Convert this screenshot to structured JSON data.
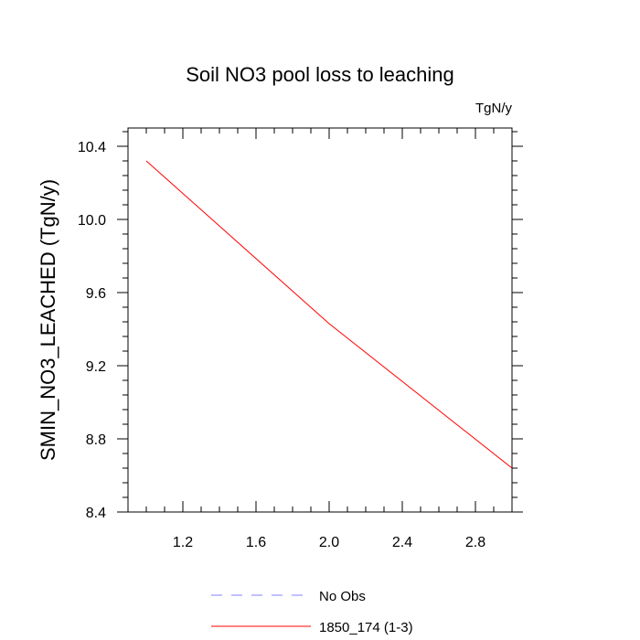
{
  "chart_data": {
    "type": "line",
    "title": "Soil NO3 pool loss to leaching",
    "units": "TgN/y",
    "ylabel": "SMIN_NO3_LEACHED  (TgN/y)",
    "xlabel": "",
    "xlim": [
      0.9,
      3.0
    ],
    "ylim": [
      8.4,
      10.5
    ],
    "x_ticks": [
      "1.2",
      "1.6",
      "2.0",
      "2.4",
      "2.8"
    ],
    "y_ticks": [
      "8.4",
      "8.8",
      "9.2",
      "9.6",
      "10.0",
      "10.4"
    ],
    "grid": false,
    "legend_position": "bottom",
    "series": [
      {
        "name": "No Obs",
        "color": "#8080ff",
        "style": "dashed",
        "x": [],
        "y": []
      },
      {
        "name": "1850_174 (1-3)",
        "color": "#ff0000",
        "style": "solid",
        "x": [
          1.0,
          2.0,
          3.0
        ],
        "y": [
          10.32,
          9.43,
          8.64
        ]
      }
    ]
  }
}
